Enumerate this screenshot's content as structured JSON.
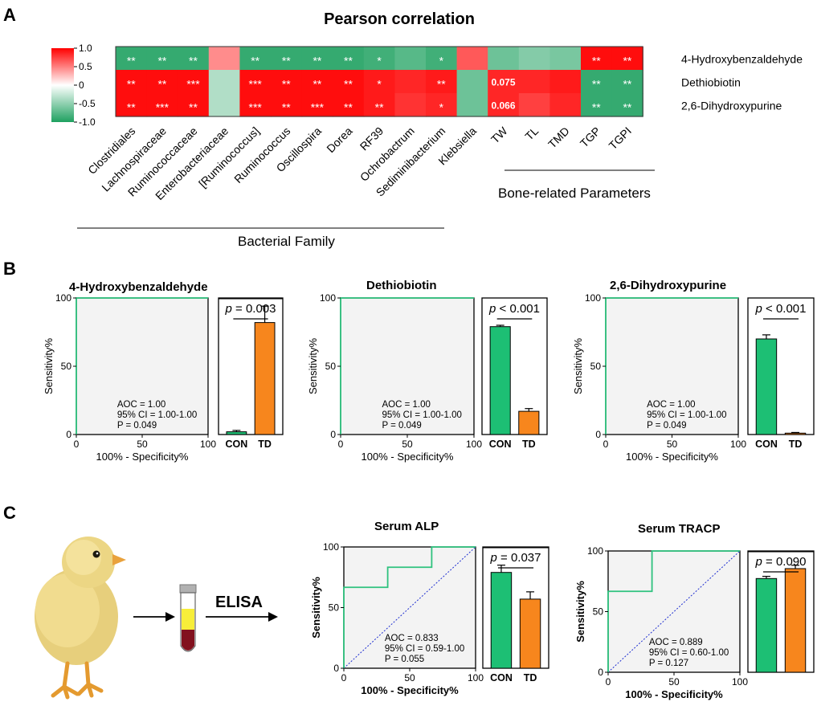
{
  "panel_labels": {
    "a": "A",
    "b": "B",
    "c": "C"
  },
  "chart_data": [
    {
      "id": "heatmap",
      "type": "heatmap",
      "title": "Pearson correlation",
      "columns": [
        "Clostridiales",
        "Lachnospiraceae",
        "Ruminococcaceae",
        "Enterobacteriaceae",
        "[Ruminococcus]",
        "Ruminococcus",
        "Oscillospira",
        "Dorea",
        "RF39",
        "Ochrobactrum",
        "Sediminibacterium",
        "Klebsiella",
        "TW",
        "TL",
        "TMD",
        "TGP",
        "TGPI"
      ],
      "rows": [
        "4-Hydroxybenzaldehyde",
        "Dethiobiotin",
        "2,6-Dihydroxypurine"
      ],
      "values": [
        [
          -0.9,
          -0.9,
          -0.9,
          0.45,
          -0.9,
          -0.9,
          -0.9,
          -0.9,
          -0.85,
          -0.75,
          -0.85,
          0.65,
          -0.65,
          -0.55,
          -0.6,
          0.95,
          0.95
        ],
        [
          0.95,
          0.95,
          0.95,
          -0.35,
          0.95,
          0.95,
          0.95,
          0.95,
          0.9,
          0.85,
          0.9,
          -0.65,
          0.85,
          0.85,
          0.9,
          -0.9,
          -0.9
        ],
        [
          0.95,
          0.95,
          0.95,
          -0.35,
          0.95,
          0.95,
          0.95,
          0.95,
          0.9,
          0.8,
          0.85,
          -0.65,
          0.85,
          0.75,
          0.85,
          -0.9,
          -0.9
        ]
      ],
      "annotations": [
        [
          "**",
          "**",
          "**",
          "",
          "**",
          "**",
          "**",
          "**",
          "*",
          "",
          "*",
          "",
          "",
          "",
          "",
          "**",
          "**"
        ],
        [
          "**",
          "**",
          "***",
          "",
          "***",
          "**",
          "**",
          "**",
          "*",
          "",
          "**",
          "",
          "0.075",
          "",
          "",
          "**",
          "**"
        ],
        [
          "**",
          "***",
          "**",
          "",
          "***",
          "**",
          "***",
          "**",
          "**",
          "",
          "*",
          "",
          "0.066",
          "",
          "",
          "**",
          "**"
        ]
      ],
      "colorbar": {
        "range": [
          -1.0,
          1.0
        ],
        "ticks": [
          "1.0",
          "0.5",
          "0",
          "-0.5",
          "-1.0"
        ],
        "colors": {
          "high": "#ff0000",
          "mid": "#ffffff",
          "low": "#1fa160"
        }
      },
      "groups": [
        {
          "label": "Bacterial Family",
          "from": 0,
          "to": 11
        },
        {
          "label": "Bone-related Parameters",
          "from": 12,
          "to": 16
        }
      ]
    },
    {
      "id": "roc_b1",
      "type": "line",
      "title": "4-Hydroxybenzaldehyde",
      "xlabel": "100% - Specificity%",
      "ylabel": "Sensitivity%",
      "xlim": [
        0,
        100
      ],
      "ylim": [
        0,
        100
      ],
      "x_ticks": [
        "0",
        "50",
        "100"
      ],
      "y_ticks": [
        "0",
        "50",
        "100"
      ],
      "series": [
        {
          "name": "ROC",
          "x": [
            0,
            0,
            100
          ],
          "y": [
            0,
            100,
            100
          ]
        }
      ],
      "stats": [
        "AOC = 1.00",
        "95% CI = 1.00-1.00",
        "P = 0.049"
      ]
    },
    {
      "id": "bar_b1",
      "type": "bar",
      "categories": [
        "CON",
        "TD"
      ],
      "values": [
        2,
        82
      ],
      "errors": [
        1,
        12
      ],
      "ylim": [
        0,
        100
      ],
      "p_label": "p = 0.003",
      "p_box": true
    },
    {
      "id": "roc_b2",
      "type": "line",
      "title": "Dethiobiotin",
      "xlabel": "100% - Specificity%",
      "ylabel": "Sensitivity%",
      "xlim": [
        0,
        100
      ],
      "ylim": [
        0,
        100
      ],
      "x_ticks": [
        "0",
        "50",
        "100"
      ],
      "y_ticks": [
        "0",
        "50",
        "100"
      ],
      "series": [
        {
          "name": "ROC",
          "x": [
            0,
            0,
            100
          ],
          "y": [
            0,
            100,
            100
          ]
        }
      ],
      "stats": [
        "AOC = 1.00",
        "95% CI = 1.00-1.00",
        "P = 0.049"
      ]
    },
    {
      "id": "bar_b2",
      "type": "bar",
      "categories": [
        "CON",
        "TD"
      ],
      "values": [
        79,
        17
      ],
      "errors": [
        1,
        2
      ],
      "ylim": [
        0,
        100
      ],
      "p_label": "p < 0.001",
      "p_box": false
    },
    {
      "id": "roc_b3",
      "type": "line",
      "title": "2,6-Dihydroxypurine",
      "xlabel": "100% - Specificity%",
      "ylabel": "Sensitivity%",
      "xlim": [
        0,
        100
      ],
      "ylim": [
        0,
        100
      ],
      "x_ticks": [
        "0",
        "50",
        "100"
      ],
      "y_ticks": [
        "0",
        "50",
        "100"
      ],
      "series": [
        {
          "name": "ROC",
          "x": [
            0,
            0,
            100
          ],
          "y": [
            0,
            100,
            100
          ]
        }
      ],
      "stats": [
        "AOC = 1.00",
        "95% CI = 1.00-1.00",
        "P = 0.049"
      ]
    },
    {
      "id": "bar_b3",
      "type": "bar",
      "categories": [
        "CON",
        "TD"
      ],
      "values": [
        70,
        1
      ],
      "errors": [
        3,
        0.5
      ],
      "ylim": [
        0,
        100
      ],
      "p_label": "p < 0.001",
      "p_box": false
    },
    {
      "id": "roc_c1",
      "type": "line",
      "title": "Serum ALP",
      "xlabel": "100% - Specificity%",
      "ylabel": "Sensitivity%",
      "xlim": [
        0,
        100
      ],
      "ylim": [
        0,
        100
      ],
      "x_ticks": [
        "0",
        "50",
        "100"
      ],
      "y_ticks": [
        "0",
        "50",
        "100"
      ],
      "series": [
        {
          "name": "ROC",
          "x": [
            0,
            0,
            33.3,
            33.3,
            66.7,
            66.7,
            100
          ],
          "y": [
            0,
            66.7,
            66.7,
            83.3,
            83.3,
            100,
            100
          ]
        }
      ],
      "diagonal": true,
      "stats": [
        "AOC = 0.833",
        "95% CI = 0.59-1.00",
        "P = 0.055"
      ]
    },
    {
      "id": "bar_c1",
      "type": "bar",
      "categories": [
        "CON",
        "TD"
      ],
      "values": [
        79,
        57
      ],
      "errors": [
        6,
        6
      ],
      "ylim": [
        0,
        100
      ],
      "p_label": "p = 0.037",
      "p_box": true
    },
    {
      "id": "roc_c2",
      "type": "line",
      "title": "Serum TRACP",
      "xlabel": "100% - Specificity%",
      "ylabel": "Sensitivity%",
      "xlim": [
        0,
        100
      ],
      "ylim": [
        0,
        100
      ],
      "x_ticks": [
        "0",
        "50",
        "100"
      ],
      "y_ticks": [
        "0",
        "50",
        "100"
      ],
      "series": [
        {
          "name": "ROC",
          "x": [
            0,
            0,
            33.3,
            33.3,
            100
          ],
          "y": [
            0,
            66.7,
            66.7,
            100,
            100
          ]
        }
      ],
      "diagonal": true,
      "stats": [
        "AOC = 0.889",
        "95% CI = 0.60-1.00",
        "P = 0.127"
      ]
    },
    {
      "id": "bar_c2",
      "type": "bar",
      "categories": [
        "",
        ""
      ],
      "values": [
        85,
        94
      ],
      "errors": [
        2,
        3
      ],
      "ylim": [
        0,
        110
      ],
      "p_label": "p = 0.090",
      "p_box": true
    }
  ],
  "workflow": {
    "label": "ELISA"
  },
  "colors": {
    "con": "#1dbf74",
    "td": "#f7861d",
    "roc": "#2ec27e",
    "diag": "#1f2fd1",
    "panel_bg": "#f3f3f3"
  }
}
